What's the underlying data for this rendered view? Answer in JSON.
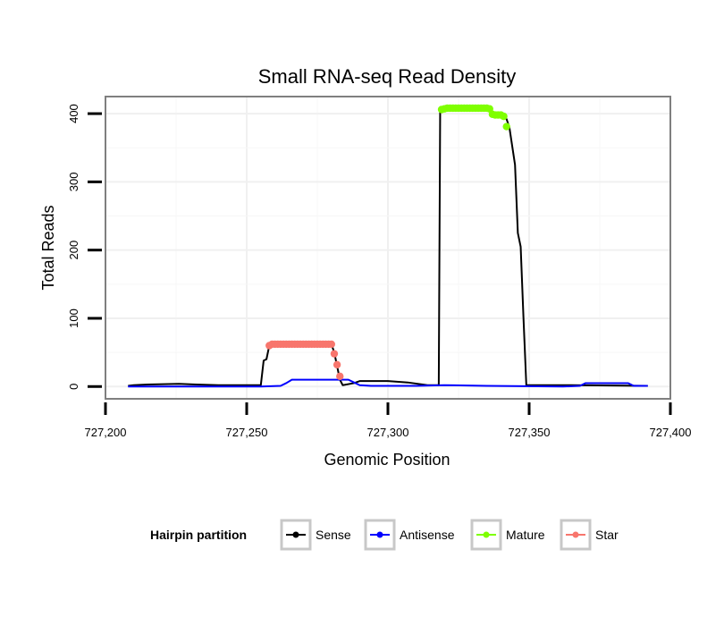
{
  "chart_data": {
    "type": "line",
    "title": "Small RNA-seq Read Density",
    "xlabel": "Genomic Position",
    "ylabel": "Total Reads",
    "xlim": [
      727200,
      727400
    ],
    "ylim": [
      -18,
      425
    ],
    "x_ticks": [
      727200,
      727250,
      727300,
      727350,
      727400
    ],
    "x_tick_labels": [
      "727,200",
      "727,250",
      "727,300",
      "727,350",
      "727,400"
    ],
    "y_ticks": [
      0,
      100,
      200,
      300,
      400
    ],
    "y_tick_labels": [
      "0",
      "100",
      "200",
      "300",
      "400"
    ],
    "grid": true,
    "legend": {
      "title": "Hairpin partition",
      "position": "bottom",
      "entries": [
        {
          "name": "Sense",
          "color": "#000000"
        },
        {
          "name": "Antisense",
          "color": "#0000ff"
        },
        {
          "name": "Mature",
          "color": "#7fff00"
        },
        {
          "name": "Star",
          "color": "#f8766d"
        }
      ]
    },
    "series": [
      {
        "name": "Sense",
        "color": "#000000",
        "points": [
          [
            727208,
            1
          ],
          [
            727210,
            2
          ],
          [
            727215,
            3
          ],
          [
            727226,
            4
          ],
          [
            727232,
            3
          ],
          [
            727240,
            2
          ],
          [
            727255,
            2
          ],
          [
            727256,
            38
          ],
          [
            727257,
            40
          ],
          [
            727258,
            60
          ],
          [
            727259,
            62
          ],
          [
            727280,
            62
          ],
          [
            727281,
            50
          ],
          [
            727282,
            30
          ],
          [
            727283,
            10
          ],
          [
            727284,
            2
          ],
          [
            727288,
            5
          ],
          [
            727290,
            8
          ],
          [
            727300,
            8
          ],
          [
            727307,
            6
          ],
          [
            727314,
            2
          ],
          [
            727318,
            2
          ],
          [
            727318.5,
            406
          ],
          [
            727320,
            408
          ],
          [
            727336,
            408
          ],
          [
            727337,
            398
          ],
          [
            727340,
            398
          ],
          [
            727342,
            392
          ],
          [
            727343,
            380
          ],
          [
            727345,
            325
          ],
          [
            727346,
            225
          ],
          [
            727347,
            205
          ],
          [
            727348,
            100
          ],
          [
            727349,
            2
          ],
          [
            727365,
            2
          ],
          [
            727392,
            1
          ]
        ]
      },
      {
        "name": "Antisense",
        "color": "#0000ff",
        "points": [
          [
            727208,
            0
          ],
          [
            727255,
            0
          ],
          [
            727262,
            1
          ],
          [
            727264,
            5
          ],
          [
            727266,
            10
          ],
          [
            727286,
            10
          ],
          [
            727288,
            6
          ],
          [
            727290,
            2
          ],
          [
            727294,
            1
          ],
          [
            727300,
            1
          ],
          [
            727310,
            1
          ],
          [
            727320,
            2
          ],
          [
            727335,
            1
          ],
          [
            727362,
            0
          ],
          [
            727368,
            1
          ],
          [
            727370,
            5
          ],
          [
            727385,
            5
          ],
          [
            727387,
            1
          ],
          [
            727392,
            1
          ]
        ]
      },
      {
        "name": "Mature",
        "color": "#7fff00",
        "points": [
          [
            727319,
            406
          ],
          [
            727320,
            407
          ],
          [
            727321,
            408
          ],
          [
            727322,
            408
          ],
          [
            727323,
            408
          ],
          [
            727324,
            408
          ],
          [
            727325,
            408
          ],
          [
            727326,
            408
          ],
          [
            727327,
            408
          ],
          [
            727328,
            408
          ],
          [
            727329,
            408
          ],
          [
            727330,
            408
          ],
          [
            727331,
            408
          ],
          [
            727332,
            408
          ],
          [
            727333,
            408
          ],
          [
            727334,
            408
          ],
          [
            727335,
            408
          ],
          [
            727336,
            407
          ],
          [
            727337,
            399
          ],
          [
            727338,
            398
          ],
          [
            727339,
            398
          ],
          [
            727340,
            398
          ],
          [
            727341,
            396
          ],
          [
            727342,
            381
          ]
        ]
      },
      {
        "name": "Star",
        "color": "#f8766d",
        "points": [
          [
            727258,
            60
          ],
          [
            727259,
            62
          ],
          [
            727260,
            62
          ],
          [
            727261,
            62
          ],
          [
            727262,
            62
          ],
          [
            727263,
            62
          ],
          [
            727264,
            62
          ],
          [
            727265,
            62
          ],
          [
            727266,
            62
          ],
          [
            727267,
            62
          ],
          [
            727268,
            62
          ],
          [
            727269,
            62
          ],
          [
            727270,
            62
          ],
          [
            727271,
            62
          ],
          [
            727272,
            62
          ],
          [
            727273,
            62
          ],
          [
            727274,
            62
          ],
          [
            727275,
            62
          ],
          [
            727276,
            62
          ],
          [
            727277,
            62
          ],
          [
            727278,
            62
          ],
          [
            727279,
            62
          ],
          [
            727280,
            62
          ],
          [
            727281,
            48
          ],
          [
            727282,
            32
          ],
          [
            727283,
            15
          ]
        ]
      }
    ]
  }
}
